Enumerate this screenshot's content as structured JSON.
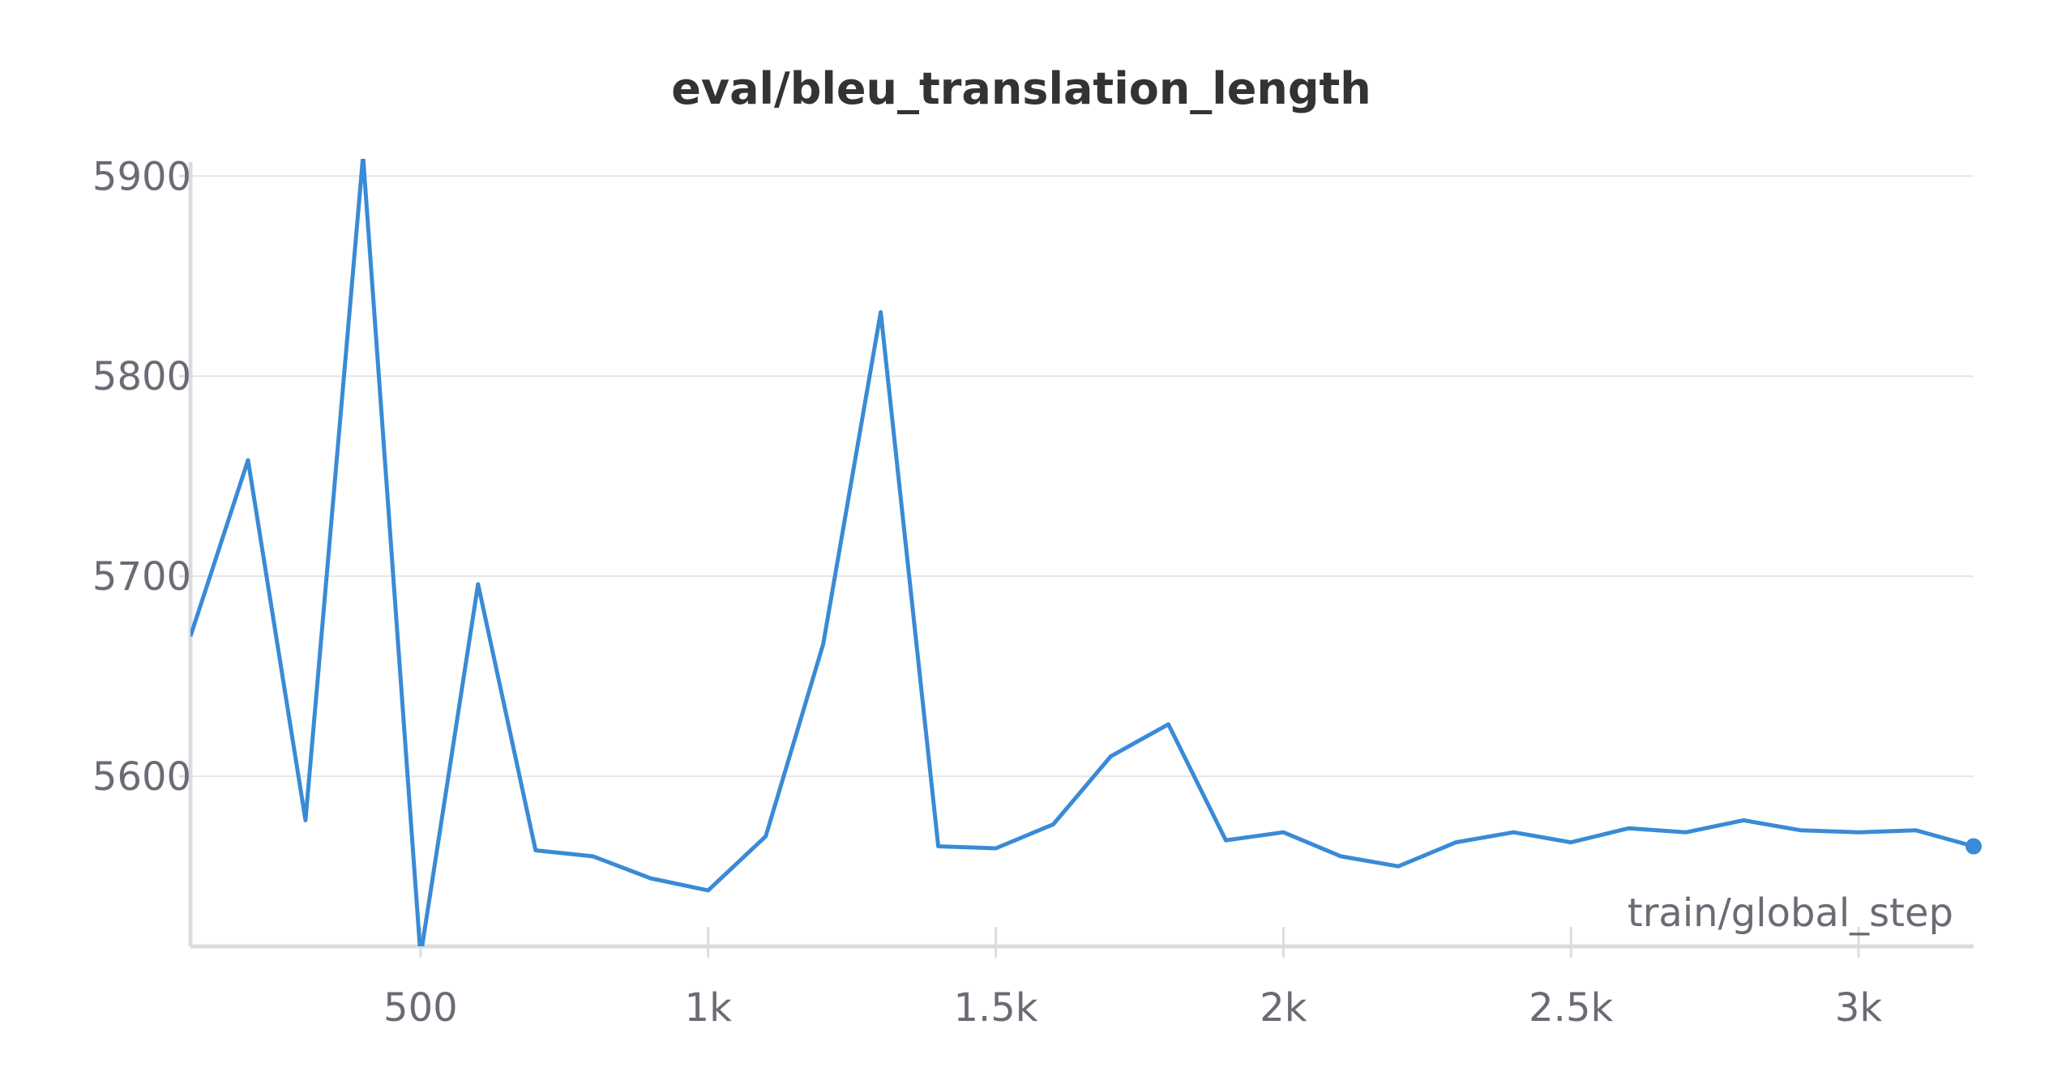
{
  "chart_data": {
    "type": "line",
    "title": "eval/bleu_translation_length",
    "xlabel": "train/global_step",
    "ylabel": "",
    "xlim": [
      100,
      3200
    ],
    "ylim": [
      5515,
      5907
    ],
    "x_ticks": [
      {
        "value": 500,
        "label": "500"
      },
      {
        "value": 1000,
        "label": "1k"
      },
      {
        "value": 1500,
        "label": "1.5k"
      },
      {
        "value": 2000,
        "label": "2k"
      },
      {
        "value": 2500,
        "label": "2.5k"
      },
      {
        "value": 3000,
        "label": "3k"
      }
    ],
    "y_ticks": [
      {
        "value": 5600,
        "label": "5600"
      },
      {
        "value": 5700,
        "label": "5700"
      },
      {
        "value": 5800,
        "label": "5800"
      },
      {
        "value": 5900,
        "label": "5900"
      }
    ],
    "grid": true,
    "legend": "none",
    "series": [
      {
        "color": "#3a8ad6",
        "x": [
          100,
          200,
          300,
          400,
          500,
          600,
          700,
          800,
          900,
          1000,
          1100,
          1200,
          1300,
          1400,
          1500,
          1600,
          1700,
          1800,
          1900,
          2000,
          2100,
          2200,
          2300,
          2400,
          2500,
          2600,
          2700,
          2800,
          2900,
          3000,
          3100,
          3200
        ],
        "y": [
          5670,
          5758,
          5578,
          5910,
          5510,
          5696,
          5563,
          5560,
          5549,
          5543,
          5570,
          5666,
          5832,
          5565,
          5564,
          5576,
          5610,
          5626,
          5568,
          5572,
          5560,
          5555,
          5567,
          5572,
          5567,
          5574,
          5572,
          5578,
          5573,
          5572,
          5573,
          5565
        ]
      }
    ]
  }
}
